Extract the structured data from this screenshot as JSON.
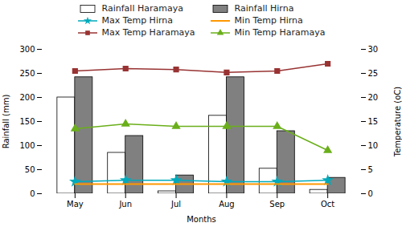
{
  "chart_data": {
    "type": "bar",
    "categories": [
      "May",
      "Jun",
      "Jul",
      "Aug",
      "Sep",
      "Oct"
    ],
    "xlabel": "Months",
    "ylabel": "Rainfall (mm)",
    "y2label": "Temperature (oC)",
    "ylim": [
      0,
      300
    ],
    "yticks": [
      0,
      50,
      100,
      150,
      200,
      250,
      300
    ],
    "y2lim": [
      0,
      30
    ],
    "y2ticks": [
      0,
      5,
      10,
      15,
      20,
      25,
      30
    ],
    "grid": false,
    "legend": "top",
    "series": [
      {
        "name": "Rainfall Haramaya",
        "type": "bar",
        "color": "#ffffff",
        "values": [
          200,
          85,
          5,
          162,
          52,
          8
        ]
      },
      {
        "name": "Rainfall Hirna",
        "type": "bar",
        "color": "#808080",
        "values": [
          242,
          120,
          38,
          242,
          130,
          33
        ]
      },
      {
        "name": "Max Temp Hirna",
        "type": "line",
        "axis": "y2",
        "color": "#00aabb",
        "marker": "star",
        "values": [
          2.5,
          2.8,
          2.8,
          2.5,
          2.5,
          2.8
        ]
      },
      {
        "name": "Min Temp Hirna",
        "type": "line",
        "axis": "y2",
        "color": "#ff9800",
        "marker": "none",
        "values": [
          2.0,
          2.0,
          2.0,
          2.0,
          2.0,
          2.0
        ]
      },
      {
        "name": "Max Temp Haramaya",
        "type": "line",
        "axis": "y2",
        "color": "#993333",
        "marker": "square",
        "values": [
          25.5,
          26.0,
          25.8,
          25.2,
          25.5,
          27.0
        ]
      },
      {
        "name": "Min Temp Haramaya",
        "type": "line",
        "axis": "y2",
        "color": "#6aaf1a",
        "marker": "triangle",
        "values": [
          13.5,
          14.5,
          14.0,
          14.0,
          14.0,
          9.0
        ]
      }
    ]
  }
}
